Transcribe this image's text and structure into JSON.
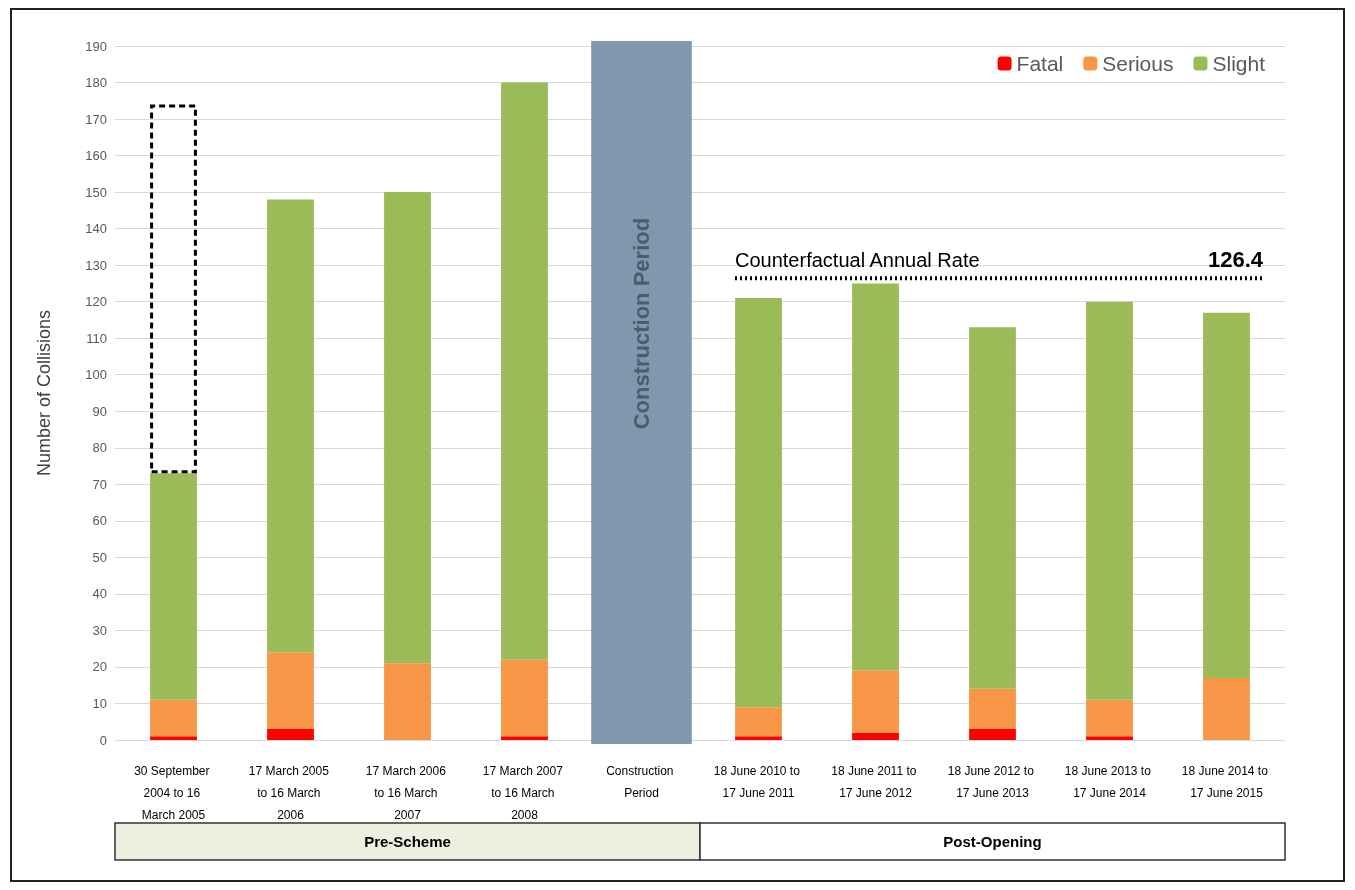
{
  "chart_data": {
    "type": "bar",
    "stacked": true,
    "ylabel": "Number of Collisions",
    "categories": [
      "30 September 2004 to 16 March 2005",
      "17 March 2005 to 16 March 2006",
      "17 March 2006 to 16 March 2007",
      "17 March 2007 to 16 March 2008",
      "Construction Period",
      "18 June 2010 to 17 June 2011",
      "18 June 2011 to 17 June 2012",
      "18 June 2012 to 17 June 2013",
      "18 June 2013 to 17 June 2014",
      "18 June 2014 to 17 June 2015"
    ],
    "series": [
      {
        "name": "Fatal",
        "color": "#ff0000",
        "values": [
          1,
          3,
          0,
          1,
          null,
          1,
          2,
          3,
          1,
          0
        ]
      },
      {
        "name": "Serious",
        "color": "#f79646",
        "values": [
          10,
          21,
          21,
          21,
          null,
          8,
          17,
          11,
          10,
          17
        ]
      },
      {
        "name": "Slight",
        "color": "#9bbb59",
        "values": [
          62,
          124,
          129,
          158,
          null,
          112,
          106,
          99,
          109,
          100
        ]
      },
      {
        "color": "#000000",
        "line_style": "dashed",
        "values": [
          101,
          null,
          null,
          null,
          null,
          null,
          null,
          null,
          null,
          null
        ]
      }
    ],
    "ylim": [
      0,
      190
    ],
    "yticks": [
      0,
      10,
      20,
      30,
      40,
      50,
      60,
      70,
      80,
      90,
      100,
      110,
      120,
      130,
      140,
      150,
      160,
      170,
      180,
      190
    ],
    "grid": "y",
    "legend": "top right",
    "bands": [
      {
        "axis": "x",
        "from": "Construction Period",
        "to": "Construction Period",
        "label": "Construction Period",
        "color": "#7f98ad"
      }
    ],
    "ref_lines": [
      {
        "axis": "y",
        "value": 126.4,
        "label": "Counterfactual Annual Rate",
        "line_style": "dotted",
        "color": "#000000"
      }
    ],
    "annotations": [
      {
        "text": "126.4",
        "x": "18 June 2014 to 17 June 2015",
        "y": 126.4
      },
      "Pre-Scheme",
      "Post-Opening"
    ]
  }
}
